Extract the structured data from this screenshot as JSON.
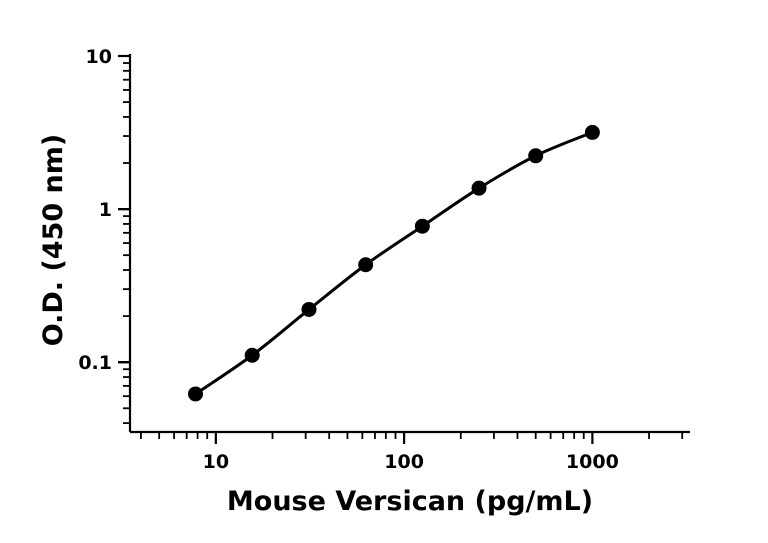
{
  "chart_data": {
    "type": "scatter",
    "xlabel": "Mouse Versican (pg/mL)",
    "ylabel": "O.D. (450 nm)",
    "xscale": "log",
    "yscale": "log",
    "xlim": [
      3.5,
      3300
    ],
    "ylim": [
      0.035,
      10
    ],
    "x_ticks": [
      {
        "value": 10,
        "label": "10"
      },
      {
        "value": 100,
        "label": "100"
      },
      {
        "value": 1000,
        "label": "1000"
      }
    ],
    "y_ticks": [
      {
        "value": 0.1,
        "label": "0.1"
      },
      {
        "value": 1,
        "label": "1"
      },
      {
        "value": 10,
        "label": "10"
      }
    ],
    "grid": false,
    "points": [
      {
        "x": 7.8,
        "y": 0.062
      },
      {
        "x": 15.6,
        "y": 0.111
      },
      {
        "x": 31.25,
        "y": 0.221
      },
      {
        "x": 62.5,
        "y": 0.433
      },
      {
        "x": 125,
        "y": 0.773
      },
      {
        "x": 250,
        "y": 1.37
      },
      {
        "x": 500,
        "y": 2.23
      },
      {
        "x": 1000,
        "y": 3.17
      }
    ],
    "fit_curve": "smooth line through points"
  }
}
